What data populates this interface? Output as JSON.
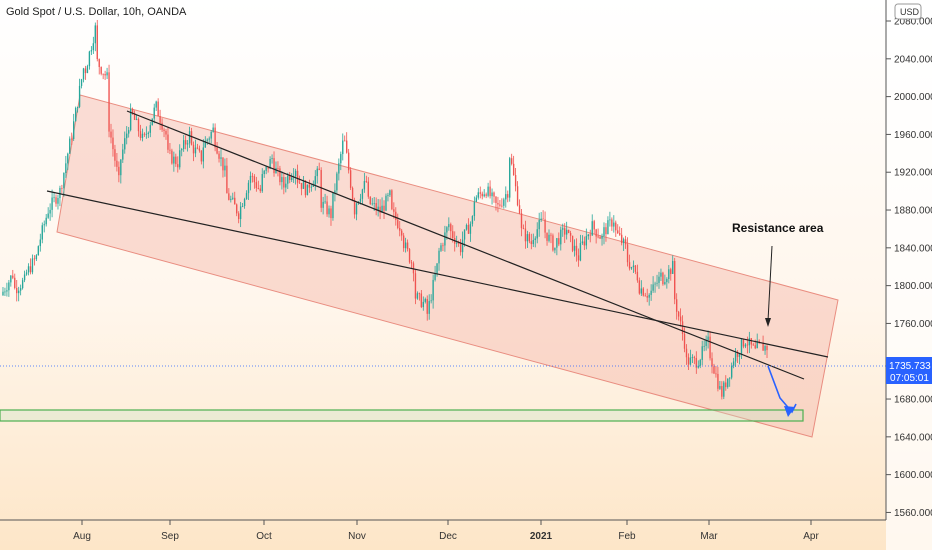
{
  "chart_data": {
    "type": "candlestick",
    "title": "Gold Spot / U.S. Dollar, 10h, OANDA",
    "currency": "USD",
    "y_axis": {
      "ticks": [
        1560,
        1600,
        1640,
        1680,
        1720,
        1760,
        1800,
        1840,
        1880,
        1920,
        1960,
        2000,
        2040,
        2080
      ],
      "tick_labels": [
        "1560.000",
        "1600.000",
        "1640.000",
        "1680.000",
        "1720.000",
        "1760.000",
        "1800.000",
        "1840.000",
        "1880.000",
        "1920.000",
        "1960.000",
        "2000.000",
        "2040.000",
        "2080.000"
      ],
      "top_partial_label": "2 0",
      "ylim": [
        1552,
        2136
      ]
    },
    "x_axis": {
      "labels": [
        "Aug",
        "Sep",
        "Oct",
        "Nov",
        "Dec",
        "2021",
        "Feb",
        "Mar",
        "Apr"
      ],
      "bold": [
        false,
        false,
        false,
        false,
        false,
        true,
        false,
        false,
        false
      ]
    },
    "current_price": {
      "value": 1735.733,
      "label": "1735.733",
      "countdown": "07:05:01",
      "color": "#2962ff"
    },
    "annotations": {
      "text": "Resistance area"
    },
    "colors": {
      "up": "#26a69a",
      "down": "#ef5350",
      "channel_fill": "#f3b5a8",
      "support_box": "#4caf50",
      "projection": "#2962ff"
    },
    "price_path": [
      [
        1790,
        1812
      ],
      [
        1795,
        1805
      ],
      [
        1810,
        1830
      ],
      [
        1835,
        1880
      ],
      [
        1880,
        1900
      ],
      [
        1900,
        1960
      ],
      [
        1960,
        2030
      ],
      [
        2020,
        2072
      ],
      [
        2040,
        2020
      ],
      [
        1980,
        1910
      ],
      [
        1925,
        1980
      ],
      [
        1985,
        1955
      ],
      [
        1950,
        1985
      ],
      [
        1995,
        1960
      ],
      [
        1940,
        1930
      ],
      [
        1935,
        1960
      ],
      [
        1950,
        1935
      ],
      [
        1945,
        1965
      ],
      [
        1960,
        1920
      ],
      [
        1900,
        1880
      ],
      [
        1870,
        1910
      ],
      [
        1920,
        1900
      ],
      [
        1910,
        1935
      ],
      [
        1930,
        1905
      ],
      [
        1910,
        1925
      ],
      [
        1915,
        1900
      ],
      [
        1905,
        1920
      ],
      [
        1890,
        1875
      ],
      [
        1880,
        1950
      ],
      [
        1965,
        1880
      ],
      [
        1885,
        1910
      ],
      [
        1890,
        1880
      ],
      [
        1875,
        1895
      ],
      [
        1880,
        1860
      ],
      [
        1850,
        1820
      ],
      [
        1790,
        1780
      ],
      [
        1760,
        1820
      ],
      [
        1830,
        1865
      ],
      [
        1860,
        1840
      ],
      [
        1845,
        1870
      ],
      [
        1890,
        1900
      ],
      [
        1905,
        1885
      ],
      [
        1880,
        1900
      ],
      [
        1950,
        1880
      ],
      [
        1860,
        1845
      ],
      [
        1850,
        1870
      ],
      [
        1860,
        1840
      ],
      [
        1845,
        1860
      ],
      [
        1855,
        1830
      ],
      [
        1835,
        1860
      ],
      [
        1865,
        1850
      ],
      [
        1855,
        1870
      ],
      [
        1860,
        1840
      ],
      [
        1830,
        1810
      ],
      [
        1800,
        1790
      ],
      [
        1790,
        1810
      ],
      [
        1805,
        1820
      ],
      [
        1795,
        1740
      ],
      [
        1720,
        1720
      ],
      [
        1718,
        1740
      ],
      [
        1735,
        1690
      ],
      [
        1680,
        1715
      ],
      [
        1720,
        1740
      ],
      [
        1745,
        1730
      ],
      [
        1735,
        1735
      ]
    ]
  }
}
